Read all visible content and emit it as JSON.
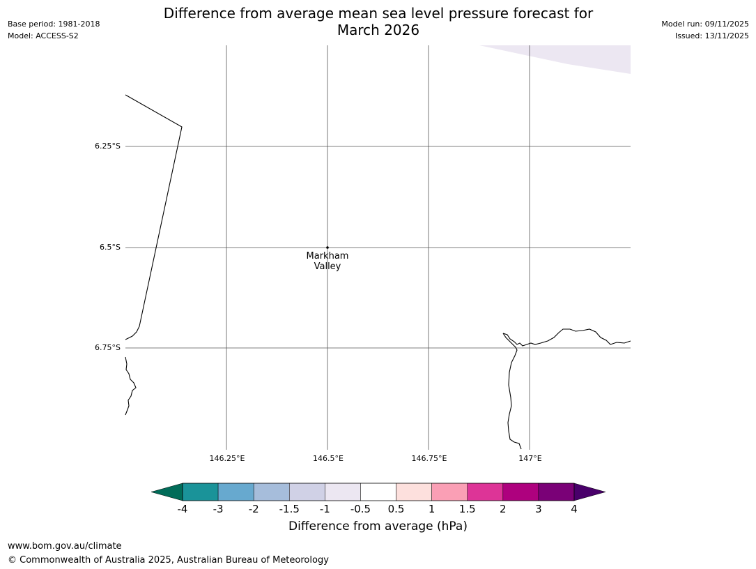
{
  "header": {
    "title_line1": "Difference from average mean sea level pressure forecast for",
    "title_line2": "March 2026",
    "base_period": "Base period: 1981-2018",
    "model": "Model: ACCESS-S2",
    "model_run": "Model run: 09/11/2025",
    "issued": "Issued: 13/11/2025"
  },
  "map": {
    "lat_labels": [
      "6.25°S",
      "6.5°S",
      "6.75°S"
    ],
    "lon_labels": [
      "146.25°E",
      "146.5°E",
      "146.75°E",
      "147°E"
    ],
    "place": {
      "name_line1": "Markham",
      "name_line2": "Valley"
    }
  },
  "colorbar": {
    "label": "Difference from average (hPa)",
    "ticks": [
      "-4",
      "-3",
      "-2",
      "-1.5",
      "-1",
      "-0.5",
      "0.5",
      "1",
      "1.5",
      "2",
      "3",
      "4"
    ],
    "colors": [
      "#1a9399",
      "#67a9cf",
      "#a6bddb",
      "#d0d1e6",
      "#ece7f2",
      "#ffffff",
      "#fde0dd",
      "#fa9fb5",
      "#dd3497",
      "#ae017e",
      "#7a0177"
    ],
    "under_color": "#016c59",
    "over_color": "#49006a"
  },
  "footer": {
    "url": "www.bom.gov.au/climate",
    "copyright": "© Commonwealth of Australia 2025, Australian Bureau of Meteorology"
  }
}
